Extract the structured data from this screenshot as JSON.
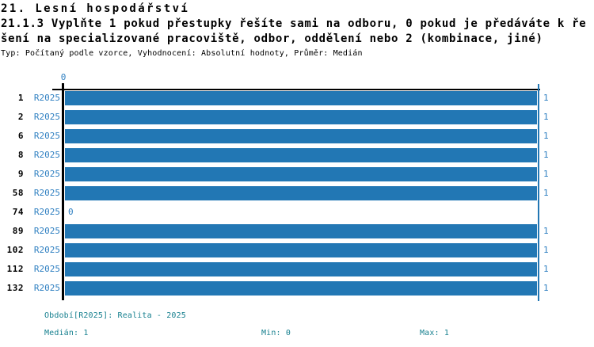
{
  "header": {
    "title": "21. Lesní hospodářství",
    "question_line1": "21.1.3 Vyplňte 1 pokud přestupky řešíte sami na odboru, 0 pokud je předáváte k ře",
    "question_line2": "šení na specializované pracoviště, odbor, oddělení nebo 2 (kombinace, jiné)",
    "meta": "Typ: Počítaný podle vzorce, Vyhodnocení: Absolutní hodnoty, Průměr: Medián"
  },
  "chart_data": {
    "type": "bar",
    "orientation": "horizontal",
    "title": "21.1.3 Vyplňte 1 pokud přestupky řešíte sami na odboru, 0 pokud je předáváte k řešení na specializované pracoviště, odbor, oddělení nebo 2 (kombinace, jiné)",
    "categories": [
      "1",
      "2",
      "6",
      "8",
      "9",
      "58",
      "74",
      "89",
      "102",
      "112",
      "132"
    ],
    "series": [
      {
        "name": "R2025",
        "values": [
          1,
          1,
          1,
          1,
          1,
          1,
          0,
          1,
          1,
          1,
          1
        ]
      }
    ],
    "value_labels": [
      "1",
      "1",
      "1",
      "1",
      "1",
      "1",
      "0",
      "1",
      "1",
      "1",
      "1"
    ],
    "xlim": [
      0,
      1
    ],
    "x_tick_labels": [
      "0"
    ],
    "reference_line_x": 1,
    "grid": false,
    "legend_position": "bottom",
    "bar_color": "#2277B4",
    "label_color": "#2E7FC1",
    "axis_color": "#000000",
    "stats": {
      "median": 1,
      "min": 0,
      "max": 1
    }
  },
  "footer": {
    "period": "Období[R2025]: Realita - 2025",
    "median_label": "Medián: 1",
    "min_label": "Min: 0",
    "max_label": "Max: 1",
    "text_color": "#17808F"
  }
}
